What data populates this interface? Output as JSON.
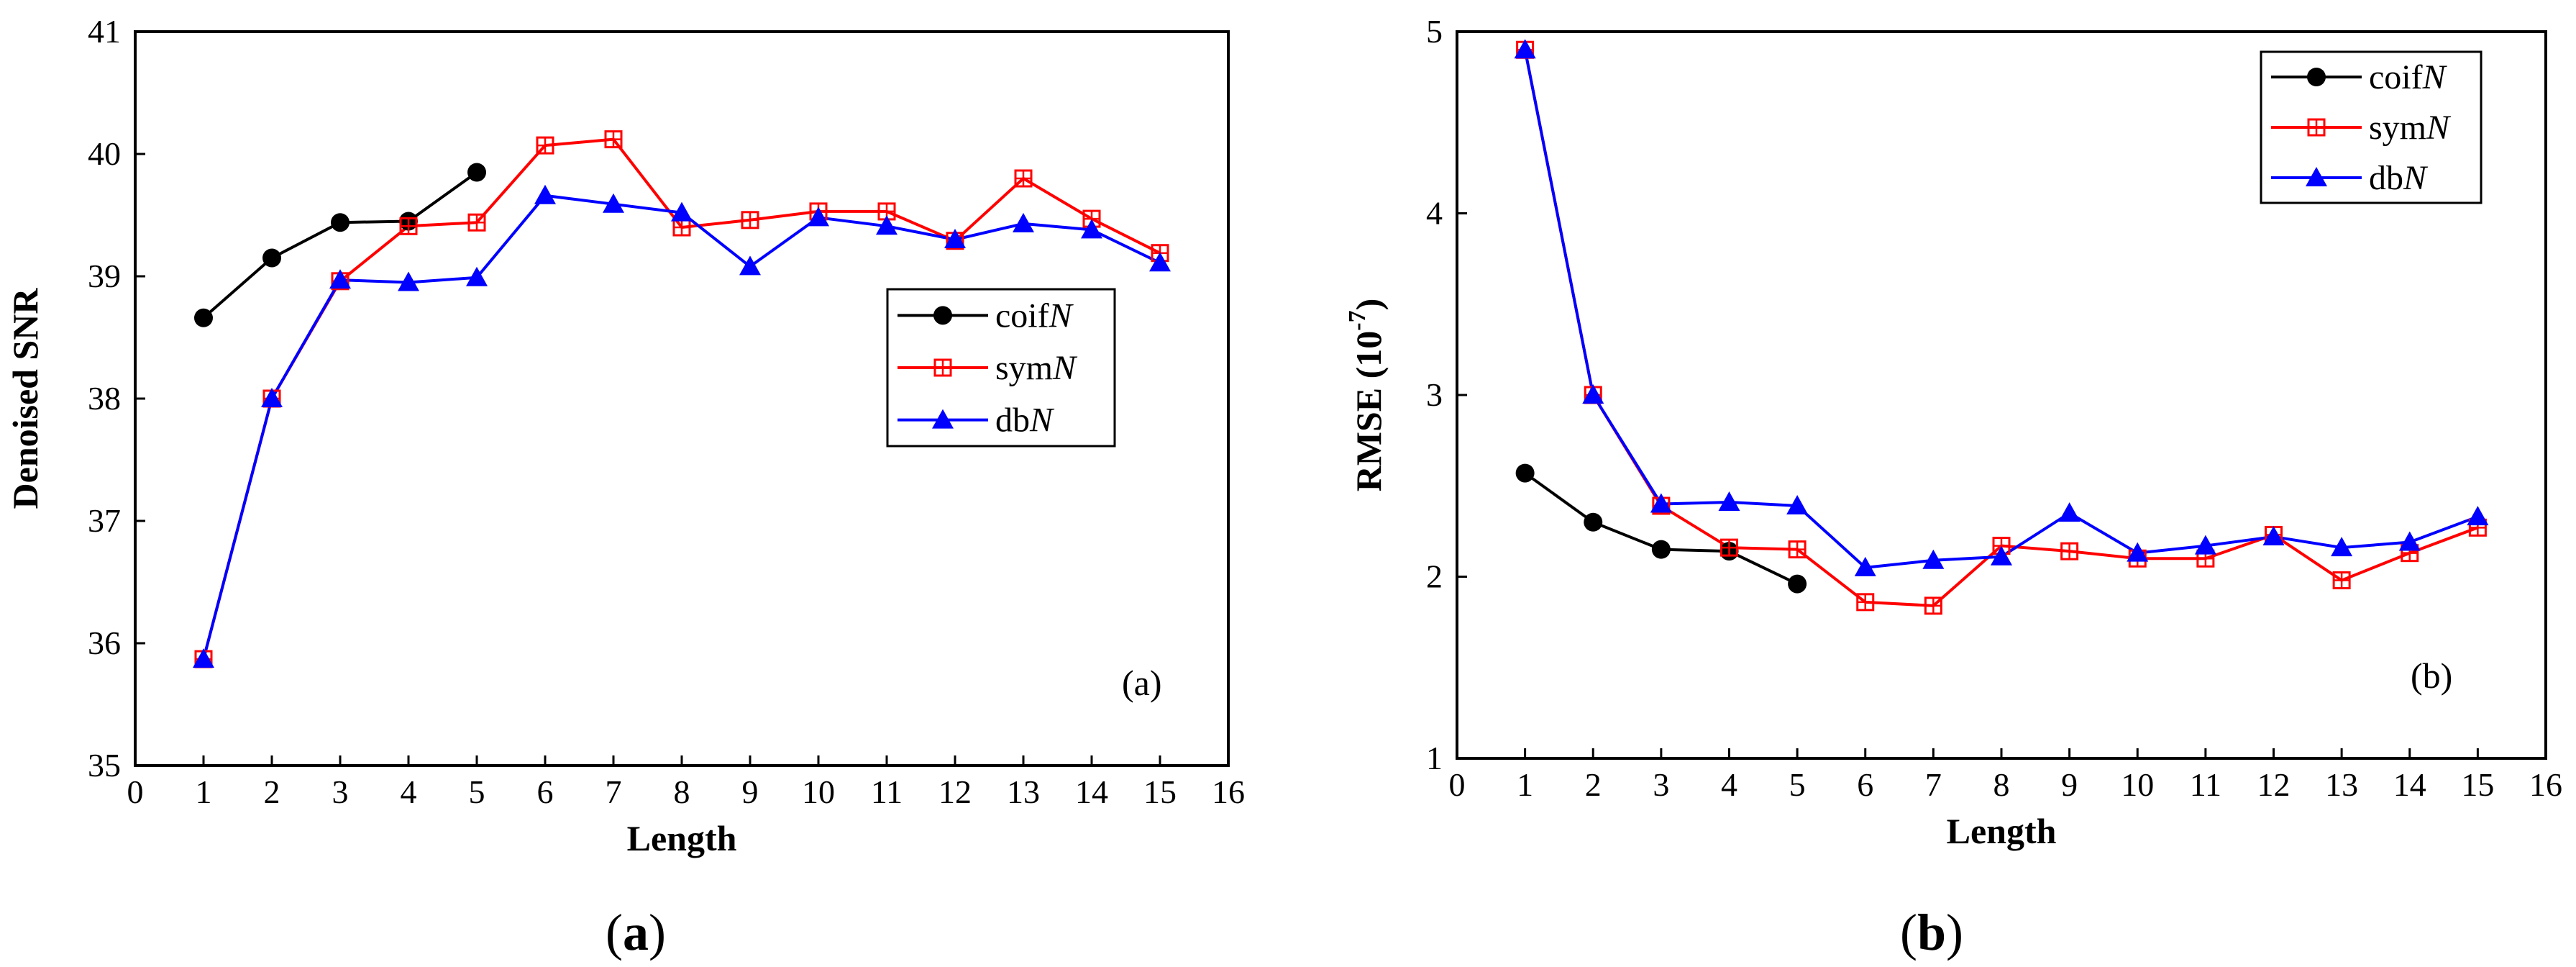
{
  "chart_data": [
    {
      "type": "line",
      "panel_label": "(a)",
      "caption": {
        "open": "(",
        "letter": "a",
        "close": ")"
      },
      "xlabel": "Length",
      "ylabel": "Denoised SNR",
      "xlim": [
        0,
        16
      ],
      "ylim": [
        35,
        41
      ],
      "xticks": [
        0,
        1,
        2,
        3,
        4,
        5,
        6,
        7,
        8,
        9,
        10,
        11,
        12,
        13,
        14,
        15,
        16
      ],
      "yticks": [
        35,
        36,
        37,
        38,
        39,
        40,
        41
      ],
      "legend_position": "center-right",
      "series": [
        {
          "name": "coifN",
          "label_base": "coif",
          "label_italic": "N",
          "color": "#000000",
          "marker": "circle",
          "x": [
            1,
            2,
            3,
            4,
            5
          ],
          "values": [
            38.66,
            39.15,
            39.44,
            39.45,
            39.85
          ]
        },
        {
          "name": "symN",
          "label_base": "sym",
          "label_italic": "N",
          "color": "#ff0000",
          "marker": "square-plus",
          "x": [
            1,
            2,
            3,
            4,
            5,
            6,
            7,
            8,
            9,
            10,
            11,
            12,
            13,
            14,
            15
          ],
          "values": [
            35.87,
            38.0,
            38.96,
            39.41,
            39.44,
            40.07,
            40.12,
            39.4,
            39.46,
            39.53,
            39.53,
            39.29,
            39.8,
            39.47,
            39.19
          ]
        },
        {
          "name": "dbN",
          "label_base": "db",
          "label_italic": "N",
          "color": "#0000ff",
          "marker": "triangle",
          "x": [
            1,
            2,
            3,
            4,
            5,
            6,
            7,
            8,
            9,
            10,
            11,
            12,
            13,
            14,
            15
          ],
          "values": [
            35.87,
            38.0,
            38.97,
            38.95,
            38.99,
            39.66,
            39.59,
            39.52,
            39.08,
            39.48,
            39.41,
            39.3,
            39.43,
            39.38,
            39.11
          ]
        }
      ]
    },
    {
      "type": "line",
      "panel_label": "(b)",
      "caption": {
        "open": "(",
        "letter": "b",
        "close": ")"
      },
      "xlabel": "Length",
      "ylabel": "RMSE (10",
      "ylabel_sup": "-7",
      "ylabel_close": ")",
      "xlim": [
        0,
        16
      ],
      "ylim": [
        1,
        5
      ],
      "xticks": [
        0,
        1,
        2,
        3,
        4,
        5,
        6,
        7,
        8,
        9,
        10,
        11,
        12,
        13,
        14,
        15,
        16
      ],
      "yticks": [
        1,
        2,
        3,
        4,
        5
      ],
      "legend_position": "top-right",
      "series": [
        {
          "name": "coifN",
          "label_base": "coif",
          "label_italic": "N",
          "color": "#000000",
          "marker": "circle",
          "x": [
            1,
            2,
            3,
            4,
            5
          ],
          "values": [
            2.57,
            2.3,
            2.15,
            2.14,
            1.96
          ]
        },
        {
          "name": "symN",
          "label_base": "sym",
          "label_italic": "N",
          "color": "#ff0000",
          "marker": "square-plus",
          "x": [
            1,
            2,
            3,
            4,
            5,
            6,
            7,
            8,
            9,
            10,
            11,
            12,
            13,
            14,
            15
          ],
          "values": [
            4.9,
            3.0,
            2.39,
            2.16,
            2.15,
            1.86,
            1.84,
            2.17,
            2.14,
            2.1,
            2.1,
            2.23,
            1.98,
            2.13,
            2.27
          ]
        },
        {
          "name": "dbN",
          "label_base": "db",
          "label_italic": "N",
          "color": "#0000ff",
          "marker": "triangle",
          "x": [
            1,
            2,
            3,
            4,
            5,
            6,
            7,
            8,
            9,
            10,
            11,
            12,
            13,
            14,
            15
          ],
          "values": [
            4.9,
            3.0,
            2.4,
            2.41,
            2.39,
            2.05,
            2.09,
            2.11,
            2.35,
            2.13,
            2.17,
            2.22,
            2.16,
            2.19,
            2.33
          ]
        }
      ]
    }
  ]
}
